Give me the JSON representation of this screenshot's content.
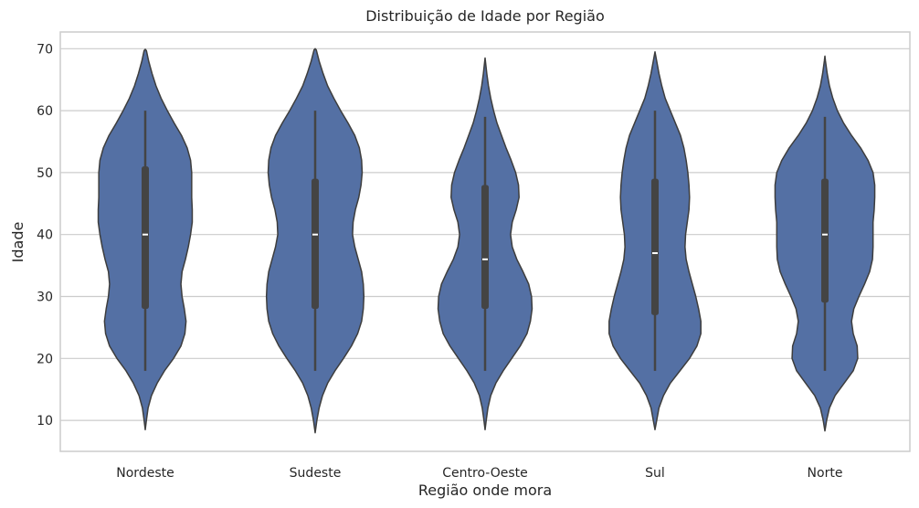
{
  "chart_data": {
    "type": "violin",
    "title": "Distribuição de Idade por Região",
    "xlabel": "Região onde mora",
    "ylabel": "Idade",
    "ylim": [
      5,
      72.7
    ],
    "yticks": [
      10,
      20,
      30,
      40,
      50,
      60,
      70
    ],
    "grid": true,
    "color": "#5470a4",
    "categories": [
      "Nordeste",
      "Sudeste",
      "Centro-Oeste",
      "Sul",
      "Norte"
    ],
    "series": [
      {
        "category": "Nordeste",
        "min": 18,
        "q1": 28,
        "median": 40,
        "q3": 51,
        "max": 60,
        "density": [
          [
            8.5,
            0
          ],
          [
            10,
            0.02
          ],
          [
            12,
            0.05
          ],
          [
            14,
            0.11
          ],
          [
            16,
            0.21
          ],
          [
            18,
            0.34
          ],
          [
            20,
            0.5
          ],
          [
            22,
            0.63
          ],
          [
            24,
            0.7
          ],
          [
            26,
            0.72
          ],
          [
            28,
            0.69
          ],
          [
            30,
            0.65
          ],
          [
            32,
            0.63
          ],
          [
            34,
            0.65
          ],
          [
            36,
            0.71
          ],
          [
            38,
            0.76
          ],
          [
            40,
            0.8
          ],
          [
            42,
            0.83
          ],
          [
            44,
            0.83
          ],
          [
            46,
            0.82
          ],
          [
            48,
            0.82
          ],
          [
            50,
            0.82
          ],
          [
            52,
            0.8
          ],
          [
            54,
            0.74
          ],
          [
            56,
            0.64
          ],
          [
            58,
            0.51
          ],
          [
            60,
            0.39
          ],
          [
            62,
            0.28
          ],
          [
            64,
            0.19
          ],
          [
            66,
            0.12
          ],
          [
            68,
            0.06
          ],
          [
            69.7,
            0.02
          ],
          [
            69.9,
            0
          ]
        ]
      },
      {
        "category": "Sudeste",
        "min": 18,
        "q1": 28,
        "median": 40,
        "q3": 49,
        "max": 60,
        "density": [
          [
            8,
            0
          ],
          [
            10,
            0.03
          ],
          [
            12,
            0.07
          ],
          [
            14,
            0.13
          ],
          [
            16,
            0.22
          ],
          [
            18,
            0.35
          ],
          [
            20,
            0.5
          ],
          [
            22,
            0.64
          ],
          [
            24,
            0.75
          ],
          [
            26,
            0.82
          ],
          [
            28,
            0.85
          ],
          [
            30,
            0.86
          ],
          [
            32,
            0.85
          ],
          [
            34,
            0.82
          ],
          [
            36,
            0.76
          ],
          [
            38,
            0.7
          ],
          [
            40,
            0.66
          ],
          [
            42,
            0.67
          ],
          [
            44,
            0.71
          ],
          [
            46,
            0.77
          ],
          [
            48,
            0.81
          ],
          [
            50,
            0.83
          ],
          [
            52,
            0.82
          ],
          [
            54,
            0.78
          ],
          [
            56,
            0.7
          ],
          [
            58,
            0.58
          ],
          [
            60,
            0.45
          ],
          [
            62,
            0.33
          ],
          [
            64,
            0.22
          ],
          [
            66,
            0.14
          ],
          [
            68,
            0.07
          ],
          [
            69.8,
            0.02
          ],
          [
            70,
            0
          ]
        ]
      },
      {
        "category": "Centro-Oeste",
        "min": 18,
        "q1": 28,
        "median": 36,
        "q3": 48,
        "max": 59,
        "density": [
          [
            8.5,
            0
          ],
          [
            10,
            0.02
          ],
          [
            12,
            0.05
          ],
          [
            14,
            0.1
          ],
          [
            16,
            0.19
          ],
          [
            18,
            0.32
          ],
          [
            20,
            0.47
          ],
          [
            22,
            0.62
          ],
          [
            24,
            0.74
          ],
          [
            26,
            0.8
          ],
          [
            28,
            0.83
          ],
          [
            30,
            0.82
          ],
          [
            32,
            0.77
          ],
          [
            34,
            0.67
          ],
          [
            36,
            0.56
          ],
          [
            38,
            0.48
          ],
          [
            40,
            0.45
          ],
          [
            42,
            0.48
          ],
          [
            44,
            0.55
          ],
          [
            46,
            0.6
          ],
          [
            48,
            0.59
          ],
          [
            50,
            0.54
          ],
          [
            52,
            0.46
          ],
          [
            54,
            0.37
          ],
          [
            56,
            0.29
          ],
          [
            58,
            0.21
          ],
          [
            60,
            0.15
          ],
          [
            62,
            0.1
          ],
          [
            64,
            0.06
          ],
          [
            66,
            0.03
          ],
          [
            68.5,
            0
          ]
        ]
      },
      {
        "category": "Sul",
        "min": 18,
        "q1": 27,
        "median": 37,
        "q3": 49,
        "max": 60,
        "density": [
          [
            8.5,
            0
          ],
          [
            10,
            0.03
          ],
          [
            12,
            0.07
          ],
          [
            14,
            0.15
          ],
          [
            16,
            0.27
          ],
          [
            18,
            0.44
          ],
          [
            20,
            0.61
          ],
          [
            22,
            0.74
          ],
          [
            24,
            0.81
          ],
          [
            26,
            0.81
          ],
          [
            28,
            0.77
          ],
          [
            30,
            0.72
          ],
          [
            32,
            0.66
          ],
          [
            34,
            0.6
          ],
          [
            36,
            0.55
          ],
          [
            38,
            0.53
          ],
          [
            40,
            0.54
          ],
          [
            42,
            0.57
          ],
          [
            44,
            0.6
          ],
          [
            46,
            0.61
          ],
          [
            48,
            0.6
          ],
          [
            50,
            0.58
          ],
          [
            52,
            0.55
          ],
          [
            54,
            0.51
          ],
          [
            56,
            0.45
          ],
          [
            58,
            0.36
          ],
          [
            60,
            0.27
          ],
          [
            62,
            0.18
          ],
          [
            64,
            0.12
          ],
          [
            66,
            0.07
          ],
          [
            68,
            0.03
          ],
          [
            69.5,
            0
          ]
        ]
      },
      {
        "category": "Norte",
        "min": 18,
        "q1": 29,
        "median": 40,
        "q3": 49,
        "max": 59,
        "density": [
          [
            8.3,
            0
          ],
          [
            10,
            0.03
          ],
          [
            12,
            0.08
          ],
          [
            14,
            0.18
          ],
          [
            16,
            0.34
          ],
          [
            18,
            0.5
          ],
          [
            20,
            0.58
          ],
          [
            22,
            0.57
          ],
          [
            24,
            0.5
          ],
          [
            26,
            0.47
          ],
          [
            28,
            0.51
          ],
          [
            30,
            0.6
          ],
          [
            32,
            0.7
          ],
          [
            34,
            0.79
          ],
          [
            36,
            0.84
          ],
          [
            38,
            0.85
          ],
          [
            40,
            0.85
          ],
          [
            42,
            0.85
          ],
          [
            44,
            0.87
          ],
          [
            46,
            0.88
          ],
          [
            48,
            0.88
          ],
          [
            50,
            0.85
          ],
          [
            52,
            0.76
          ],
          [
            54,
            0.63
          ],
          [
            56,
            0.47
          ],
          [
            58,
            0.33
          ],
          [
            60,
            0.22
          ],
          [
            62,
            0.14
          ],
          [
            64,
            0.08
          ],
          [
            66,
            0.04
          ],
          [
            68,
            0.01
          ],
          [
            68.8,
            0
          ]
        ]
      }
    ]
  }
}
